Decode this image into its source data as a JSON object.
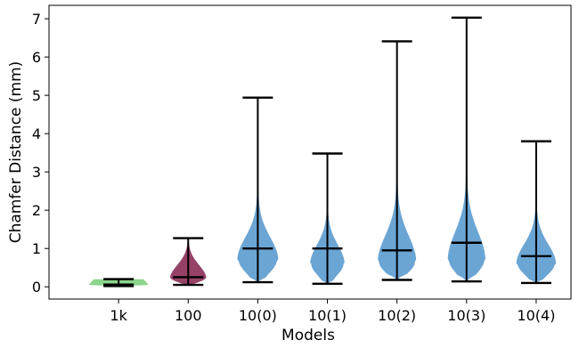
{
  "chart_data": {
    "type": "violin",
    "title": "",
    "xlabel": "Models",
    "ylabel": "Chamfer Distance (mm)",
    "ylim": [
      -0.32,
      7.35
    ],
    "yticks": [
      0,
      1,
      2,
      3,
      4,
      5,
      6,
      7
    ],
    "categories": [
      "1k",
      "100",
      "10(0)",
      "10(1)",
      "10(2)",
      "10(3)",
      "10(4)"
    ],
    "grid": false,
    "legend": "none",
    "violins": [
      {
        "category": "1k",
        "min": 0.02,
        "max": 0.2,
        "mean": 0.06,
        "color": "#7fd07f",
        "mode": 0.05,
        "width": 0.9
      },
      {
        "category": "100",
        "min": 0.05,
        "max": 1.27,
        "mean": 0.25,
        "color": "#8b2c55",
        "mode": 0.22,
        "width": 0.55
      },
      {
        "category": "10(0)",
        "min": 0.12,
        "max": 4.94,
        "mean": 1.0,
        "color": "#5b9bcf",
        "mode": 0.7,
        "width": 0.62
      },
      {
        "category": "10(1)",
        "min": 0.08,
        "max": 3.48,
        "mean": 1.0,
        "color": "#5b9bcf",
        "mode": 0.6,
        "width": 0.52
      },
      {
        "category": "10(2)",
        "min": 0.18,
        "max": 6.41,
        "mean": 0.95,
        "color": "#5b9bcf",
        "mode": 0.65,
        "width": 0.58
      },
      {
        "category": "10(3)",
        "min": 0.14,
        "max": 7.03,
        "mean": 1.15,
        "color": "#5b9bcf",
        "mode": 0.7,
        "width": 0.57
      },
      {
        "category": "10(4)",
        "min": 0.1,
        "max": 3.8,
        "mean": 0.8,
        "color": "#5b9bcf",
        "mode": 0.6,
        "width": 0.6
      }
    ]
  }
}
